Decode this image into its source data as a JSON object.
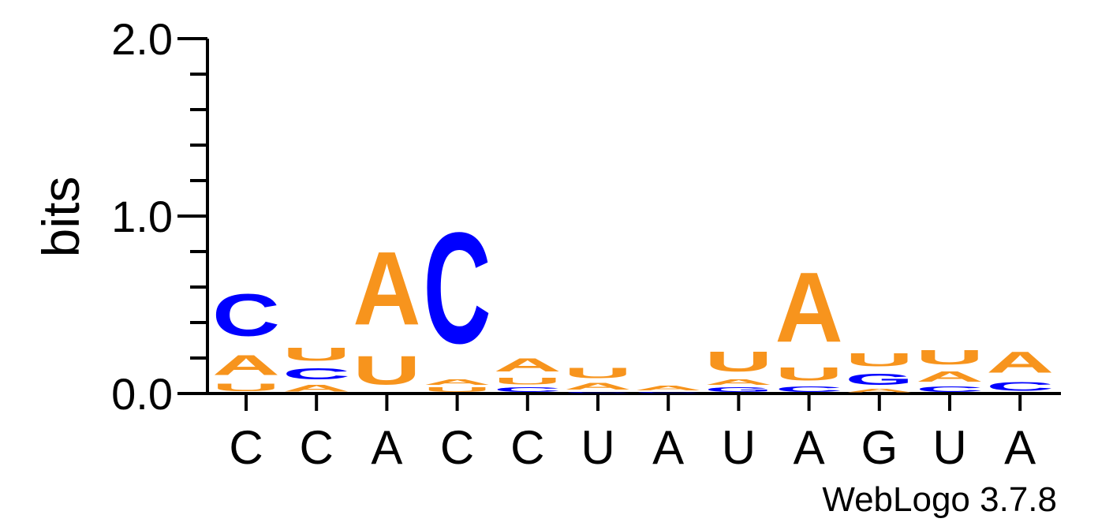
{
  "chart_data": {
    "type": "sequence-logo",
    "ylabel": "bits",
    "ylim": [
      0,
      2.0
    ],
    "y_ticks": [
      "0.0",
      "1.0",
      "2.0"
    ],
    "y_tick_values": [
      0.0,
      1.0,
      2.0
    ],
    "colors": {
      "A": "#f7941d",
      "U": "#f7941d",
      "G": "#0000ff",
      "C": "#0000ff"
    },
    "consensus": [
      "C",
      "C",
      "A",
      "C",
      "C",
      "U",
      "A",
      "U",
      "A",
      "G",
      "U",
      "A"
    ],
    "positions": [
      [
        {
          "letter": "U",
          "bits": 0.07
        },
        {
          "letter": "A",
          "bits": 0.18
        },
        {
          "letter": "C",
          "bits": 0.38
        }
      ],
      [
        {
          "letter": "A",
          "bits": 0.06
        },
        {
          "letter": "C",
          "bits": 0.1
        },
        {
          "letter": "U",
          "bits": 0.12
        }
      ],
      [
        {
          "letter": "U",
          "bits": 0.26
        },
        {
          "letter": "A",
          "bits": 0.66
        }
      ],
      [
        {
          "letter": "U",
          "bits": 0.04
        },
        {
          "letter": "A",
          "bits": 0.05
        },
        {
          "letter": "C",
          "bits": 1.0
        }
      ],
      [
        {
          "letter": "C",
          "bits": 0.04
        },
        {
          "letter": "U",
          "bits": 0.06
        },
        {
          "letter": "A",
          "bits": 0.12
        }
      ],
      [
        {
          "letter": "C",
          "bits": 0.01
        },
        {
          "letter": "A",
          "bits": 0.06
        },
        {
          "letter": "U",
          "bits": 0.09
        }
      ],
      [
        {
          "letter": "C",
          "bits": 0.01
        },
        {
          "letter": "A",
          "bits": 0.04
        }
      ],
      [
        {
          "letter": "G",
          "bits": 0.04
        },
        {
          "letter": "A",
          "bits": 0.05
        },
        {
          "letter": "U",
          "bits": 0.18
        }
      ],
      [
        {
          "letter": "C",
          "bits": 0.05
        },
        {
          "letter": "U",
          "bits": 0.12
        },
        {
          "letter": "A",
          "bits": 0.63
        }
      ],
      [
        {
          "letter": "A",
          "bits": 0.03
        },
        {
          "letter": "G",
          "bits": 0.1
        },
        {
          "letter": "U",
          "bits": 0.12
        }
      ],
      [
        {
          "letter": "C",
          "bits": 0.05
        },
        {
          "letter": "A",
          "bits": 0.09
        },
        {
          "letter": "U",
          "bits": 0.13
        }
      ],
      [
        {
          "letter": "C",
          "bits": 0.08
        },
        {
          "letter": "A",
          "bits": 0.19
        }
      ]
    ]
  },
  "credit": "WebLogo 3.7.8"
}
